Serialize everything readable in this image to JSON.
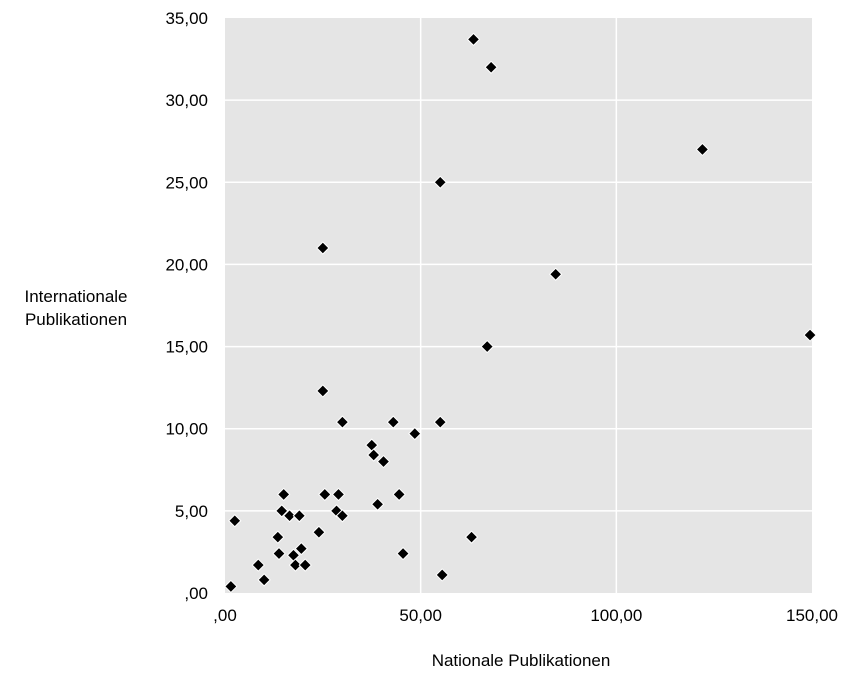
{
  "chart_data": {
    "type": "scatter",
    "xlabel": "Nationale Publikationen",
    "ylabel": [
      "Internationale",
      "Publikationen"
    ],
    "xlim": [
      0,
      150
    ],
    "ylim": [
      0,
      35
    ],
    "x_ticks": [
      0,
      50,
      100,
      150
    ],
    "x_tick_labels": [
      ",00",
      "50,00",
      "100,00",
      "150,00"
    ],
    "y_ticks": [
      0,
      5,
      10,
      15,
      20,
      25,
      30,
      35
    ],
    "y_tick_labels": [
      ",00",
      "5,00",
      "10,00",
      "15,00",
      "20,00",
      "25,00",
      "30,00",
      "35,00"
    ],
    "grid": true,
    "colors": {
      "plot_background": "#e5e5e5",
      "grid": "#ffffff",
      "marker": "#000000",
      "marker_edge": "#ffffff"
    },
    "marker": "diamond",
    "points": [
      {
        "x": 1.5,
        "y": 0.4
      },
      {
        "x": 2.5,
        "y": 4.4
      },
      {
        "x": 8.5,
        "y": 1.7
      },
      {
        "x": 10.0,
        "y": 0.8
      },
      {
        "x": 13.5,
        "y": 3.4
      },
      {
        "x": 13.8,
        "y": 2.4
      },
      {
        "x": 14.5,
        "y": 5.0
      },
      {
        "x": 15.0,
        "y": 6.0
      },
      {
        "x": 16.5,
        "y": 4.7
      },
      {
        "x": 17.5,
        "y": 2.3
      },
      {
        "x": 18.0,
        "y": 1.7
      },
      {
        "x": 19.0,
        "y": 4.7
      },
      {
        "x": 19.5,
        "y": 2.7
      },
      {
        "x": 20.5,
        "y": 1.7
      },
      {
        "x": 24.0,
        "y": 3.7
      },
      {
        "x": 25.0,
        "y": 21.0
      },
      {
        "x": 25.0,
        "y": 12.3
      },
      {
        "x": 25.5,
        "y": 6.0
      },
      {
        "x": 28.5,
        "y": 5.0
      },
      {
        "x": 29.0,
        "y": 6.0
      },
      {
        "x": 30.0,
        "y": 10.4
      },
      {
        "x": 30.0,
        "y": 4.7
      },
      {
        "x": 37.5,
        "y": 9.0
      },
      {
        "x": 38.0,
        "y": 8.4
      },
      {
        "x": 39.0,
        "y": 5.4
      },
      {
        "x": 40.5,
        "y": 8.0
      },
      {
        "x": 43.0,
        "y": 10.4
      },
      {
        "x": 44.5,
        "y": 6.0
      },
      {
        "x": 45.5,
        "y": 2.4
      },
      {
        "x": 48.5,
        "y": 9.7
      },
      {
        "x": 55.0,
        "y": 25.0
      },
      {
        "x": 55.0,
        "y": 10.4
      },
      {
        "x": 55.5,
        "y": 1.1
      },
      {
        "x": 63.0,
        "y": 3.4
      },
      {
        "x": 63.5,
        "y": 33.7
      },
      {
        "x": 67.0,
        "y": 15.0
      },
      {
        "x": 68.0,
        "y": 32.0
      },
      {
        "x": 84.5,
        "y": 19.4
      },
      {
        "x": 122.0,
        "y": 27.0
      },
      {
        "x": 149.5,
        "y": 15.7
      }
    ]
  }
}
